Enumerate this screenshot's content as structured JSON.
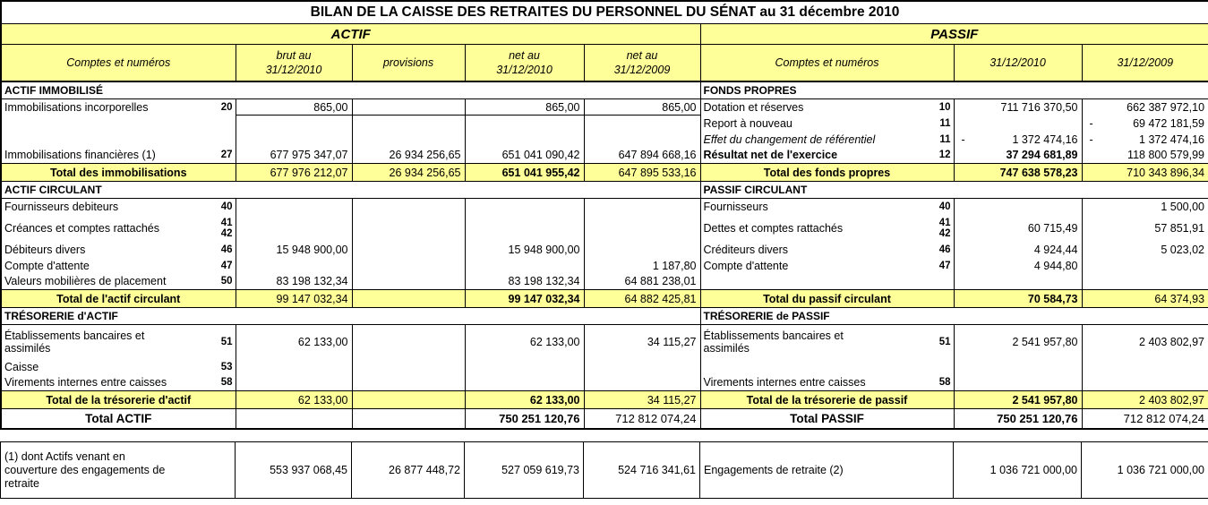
{
  "title": "BILAN DE LA CAISSE DES RETRAITES DU PERSONNEL DU SÉNAT au 31 décembre 2010",
  "left_header": "ACTIF",
  "right_header": "PASSIF",
  "columns": {
    "accounts": "Comptes et numéros",
    "brut": "brut au\n31/12/2010",
    "provisions": "provisions",
    "net_2010": "net au\n31/12/2010",
    "net_2009": "net au\n31/12/2009",
    "accounts_right": "Comptes et numéros",
    "p2010": "31/12/2010",
    "p2009": "31/12/2009"
  },
  "colors": {
    "header_yellow": "#FFFF99",
    "border": "#000000"
  },
  "rows": [
    {
      "type": "section",
      "left": {
        "label": "ACTIF IMMOBILISÉ"
      },
      "right": {
        "label": "FONDS PROPRES"
      }
    },
    {
      "type": "data",
      "left": {
        "label": "Immobilisations incorporelles",
        "num": "20",
        "values": [
          "865,00",
          "",
          "865,00",
          "865,00"
        ],
        "rule": [
          true,
          true,
          true,
          true
        ]
      },
      "right": {
        "label": "Dotation et réserves",
        "num": "10",
        "values": [
          "711 716 370,50",
          "662 387 972,10"
        ]
      }
    },
    {
      "type": "data",
      "left": {},
      "right": {
        "label": "Report à nouveau",
        "num": "11",
        "values": [
          "",
          "69 472 181,59"
        ],
        "neg": [
          false,
          true
        ]
      }
    },
    {
      "type": "data",
      "left": {},
      "right": {
        "label": "Effet du changement de référentiel",
        "style": "it",
        "num": "11",
        "values": [
          "1 372 474,16",
          "1 372 474,16"
        ],
        "neg": [
          true,
          true
        ]
      }
    },
    {
      "type": "data",
      "left": {
        "label": "Immobilisations financières (1)",
        "num": "27",
        "values": [
          "677 975 347,07",
          "26 934 256,65",
          "651 041 090,42",
          "647 894 668,16"
        ]
      },
      "right": {
        "label": "Résultat net de l'exercice",
        "style": "bd",
        "num": "12",
        "values": [
          "37 294 681,89",
          "118 800 579,99"
        ],
        "bold": [
          true,
          false
        ]
      }
    },
    {
      "type": "total",
      "left": {
        "label": "Total des immobilisations",
        "values": [
          "677 976 212,07",
          "26 934 256,65",
          "651 041 955,42",
          "647 895 533,16"
        ],
        "bold": [
          false,
          false,
          true,
          false
        ]
      },
      "right": {
        "label": "Total des fonds propres",
        "values": [
          "747 638 578,23",
          "710 343 896,34"
        ],
        "bold": [
          true,
          false
        ]
      }
    },
    {
      "type": "section",
      "left": {
        "label": "ACTIF CIRCULANT"
      },
      "right": {
        "label": "PASSIF CIRCULANT"
      }
    },
    {
      "type": "data",
      "left": {
        "label": "Fournisseurs debiteurs",
        "num": "40"
      },
      "right": {
        "label": "Fournisseurs",
        "num": "40",
        "values": [
          "",
          "1 500,00"
        ]
      }
    },
    {
      "type": "data",
      "size": "tall",
      "left": {
        "label": "Créances et comptes rattachés",
        "num": "41\n42"
      },
      "right": {
        "label": "Dettes et comptes rattachés",
        "num": "41\n42",
        "values": [
          "60 715,49",
          "57 851,91"
        ]
      }
    },
    {
      "type": "data",
      "left": {
        "label": "Débiteurs divers",
        "num": "46",
        "values": [
          "15 948 900,00",
          "",
          "15 948 900,00",
          ""
        ]
      },
      "right": {
        "label": "Créditeurs divers",
        "num": "46",
        "values": [
          "4 924,44",
          "5 023,02"
        ]
      }
    },
    {
      "type": "data",
      "left": {
        "label": "Compte d'attente",
        "num": "47",
        "values": [
          "",
          "",
          "",
          "1 187,80"
        ]
      },
      "right": {
        "label": "Compte d'attente",
        "num": "47",
        "values": [
          "4 944,80",
          ""
        ]
      }
    },
    {
      "type": "data",
      "left": {
        "label": "Valeurs mobilières de placement",
        "num": "50",
        "values": [
          "83 198 132,34",
          "",
          "83 198 132,34",
          "64 881 238,01"
        ]
      },
      "right": {}
    },
    {
      "type": "total",
      "left": {
        "label": "Total  de l'actif circulant",
        "values": [
          "99 147 032,34",
          "",
          "99 147 032,34",
          "64 882 425,81"
        ],
        "bold": [
          false,
          false,
          true,
          false
        ]
      },
      "right": {
        "label": "Total du passif circulant",
        "values": [
          "70 584,73",
          "64 374,93"
        ],
        "bold": [
          true,
          false
        ]
      }
    },
    {
      "type": "section",
      "left": {
        "label": "TRÉSORERIE d'ACTIF"
      },
      "right": {
        "label": "TRÉSORERIE de PASSIF"
      }
    },
    {
      "type": "data",
      "size": "tall2",
      "left": {
        "label": "Établissements bancaires et\nassimilés",
        "num": "51",
        "values": [
          "62 133,00",
          "",
          "62 133,00",
          "34 115,27"
        ]
      },
      "right": {
        "label": "Établissements bancaires et\nassimilés",
        "num": "51",
        "values": [
          "2 541 957,80",
          "2 403 802,97"
        ]
      }
    },
    {
      "type": "data",
      "left": {
        "label": "Caisse",
        "num": "53"
      },
      "right": {}
    },
    {
      "type": "data",
      "left": {
        "label": "Virements internes entre caisses",
        "num": "58"
      },
      "right": {
        "label": "Virements internes entre caisses",
        "num": "58"
      }
    },
    {
      "type": "total",
      "left": {
        "label": "Total de la trésorerie d'actif",
        "values": [
          "62 133,00",
          "",
          "62 133,00",
          "34 115,27"
        ],
        "bold": [
          false,
          false,
          true,
          false
        ]
      },
      "right": {
        "label": "Total de la trésorerie de passif",
        "values": [
          "2 541 957,80",
          "2 403 802,97"
        ],
        "bold": [
          true,
          false
        ]
      }
    },
    {
      "type": "grand",
      "left": {
        "label": "Total ACTIF",
        "values": [
          "",
          "",
          "750 251 120,76",
          "712 812 074,24"
        ],
        "bold": [
          false,
          false,
          true,
          false
        ]
      },
      "right": {
        "label": "Total PASSIF",
        "values": [
          "750 251 120,76",
          "712 812 074,24"
        ],
        "bold": [
          true,
          false
        ]
      }
    }
  ],
  "footnote": {
    "left": {
      "label": "(1) dont Actifs venant en\ncouverture des engagements de\nretraite",
      "values": [
        "553 937 068,45",
        "26 877 448,72",
        "527 059 619,73",
        "524 716 341,61"
      ]
    },
    "right": {
      "label": "Engagements de retraite (2)",
      "values": [
        "1 036 721 000,00",
        "1 036 721 000,00"
      ]
    }
  }
}
